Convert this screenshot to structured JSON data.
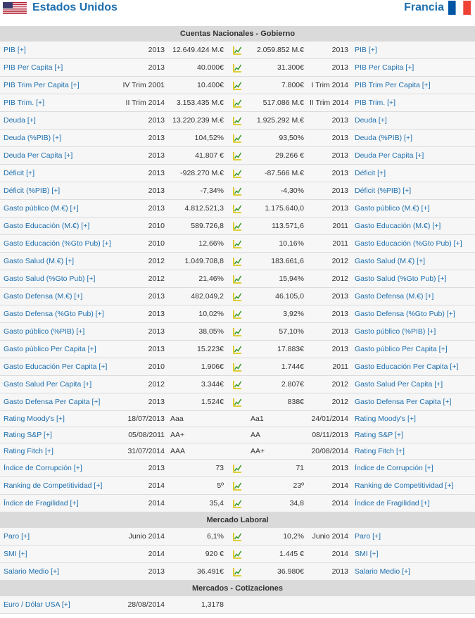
{
  "header": {
    "left_country": "Estados Unidos",
    "right_country": "Francia"
  },
  "colors": {
    "link": "#1e6fae",
    "section_bg": "#dadada",
    "icon_green": "#3a9a2a",
    "icon_yellow": "#d8c000"
  },
  "sections": [
    {
      "title": "Cuentas Nacionales - Gobierno",
      "rows": [
        {
          "label": "PIB [+]",
          "left_year": "2013",
          "left_value": "12.649.424 M.€",
          "right_value": "2.059.852 M.€",
          "right_year": "2013",
          "right_label": "PIB [+]",
          "icon": true
        },
        {
          "label": "PIB Per Capita [+]",
          "left_year": "2013",
          "left_value": "40.000€",
          "right_value": "31.300€",
          "right_year": "2013",
          "right_label": "PIB Per Capita [+]",
          "icon": true
        },
        {
          "label": "PIB Trim Per Capita [+]",
          "left_year": "IV Trim 2001",
          "left_value": "10.400€",
          "right_value": "7.800€",
          "right_year": "I Trim 2014",
          "right_label": "PIB Trim Per Capita [+]",
          "icon": true
        },
        {
          "label": "PIB Trim. [+]",
          "left_year": "II Trim 2014",
          "left_value": "3.153.435 M.€",
          "right_value": "517.086 M.€",
          "right_year": "II Trim 2014",
          "right_label": "PIB Trim. [+]",
          "icon": true
        },
        {
          "label": "Deuda [+]",
          "left_year": "2013",
          "left_value": "13.220.239 M.€",
          "right_value": "1.925.292 M.€",
          "right_year": "2013",
          "right_label": "Deuda [+]",
          "icon": true
        },
        {
          "label": "Deuda (%PIB) [+]",
          "left_year": "2013",
          "left_value": "104,52%",
          "right_value": "93,50%",
          "right_year": "2013",
          "right_label": "Deuda (%PIB) [+]",
          "icon": true
        },
        {
          "label": "Deuda Per Capita [+]",
          "left_year": "2013",
          "left_value": "41.807 €",
          "right_value": "29.266 €",
          "right_year": "2013",
          "right_label": "Deuda Per Capita [+]",
          "icon": true
        },
        {
          "label": "Déficit [+]",
          "left_year": "2013",
          "left_value": "-928.270 M.€",
          "right_value": "-87.566 M.€",
          "right_year": "2013",
          "right_label": "Déficit [+]",
          "icon": true
        },
        {
          "label": "Déficit (%PIB) [+]",
          "left_year": "2013",
          "left_value": "-7,34%",
          "right_value": "-4,30%",
          "right_year": "2013",
          "right_label": "Déficit (%PIB) [+]",
          "icon": true
        },
        {
          "label": "Gasto público (M.€) [+]",
          "left_year": "2013",
          "left_value": "4.812.521,3",
          "right_value": "1.175.640,0",
          "right_year": "2013",
          "right_label": "Gasto público (M.€) [+]",
          "icon": true
        },
        {
          "label": "Gasto Educación (M.€) [+]",
          "left_year": "2010",
          "left_value": "589.726,8",
          "right_value": "113.571,6",
          "right_year": "2011",
          "right_label": "Gasto Educación (M.€) [+]",
          "icon": true
        },
        {
          "label": "Gasto Educación (%Gto Pub) [+]",
          "left_year": "2010",
          "left_value": "12,66%",
          "right_value": "10,16%",
          "right_year": "2011",
          "right_label": "Gasto Educación (%Gto Pub) [+]",
          "icon": true
        },
        {
          "label": "Gasto Salud (M.€) [+]",
          "left_year": "2012",
          "left_value": "1.049.708,8",
          "right_value": "183.661,6",
          "right_year": "2012",
          "right_label": "Gasto Salud (M.€) [+]",
          "icon": true
        },
        {
          "label": "Gasto Salud (%Gto Pub) [+]",
          "left_year": "2012",
          "left_value": "21,46%",
          "right_value": "15,94%",
          "right_year": "2012",
          "right_label": "Gasto Salud (%Gto Pub) [+]",
          "icon": true
        },
        {
          "label": "Gasto Defensa (M.€) [+]",
          "left_year": "2013",
          "left_value": "482.049,2",
          "right_value": "46.105,0",
          "right_year": "2013",
          "right_label": "Gasto Defensa (M.€) [+]",
          "icon": true
        },
        {
          "label": "Gasto Defensa (%Gto Pub) [+]",
          "left_year": "2013",
          "left_value": "10,02%",
          "right_value": "3,92%",
          "right_year": "2013",
          "right_label": "Gasto Defensa (%Gto Pub) [+]",
          "icon": true
        },
        {
          "label": "Gasto público (%PIB) [+]",
          "left_year": "2013",
          "left_value": "38,05%",
          "right_value": "57,10%",
          "right_year": "2013",
          "right_label": "Gasto público (%PIB) [+]",
          "icon": true
        },
        {
          "label": "Gasto público Per Capita [+]",
          "left_year": "2013",
          "left_value": "15.223€",
          "right_value": "17.883€",
          "right_year": "2013",
          "right_label": "Gasto público Per Capita [+]",
          "icon": true
        },
        {
          "label": "Gasto Educación Per Capita [+]",
          "left_year": "2010",
          "left_value": "1.906€",
          "right_value": "1.744€",
          "right_year": "2011",
          "right_label": "Gasto Educación Per Capita [+]",
          "icon": true
        },
        {
          "label": "Gasto Salud Per Capita [+]",
          "left_year": "2012",
          "left_value": "3.344€",
          "right_value": "2.807€",
          "right_year": "2012",
          "right_label": "Gasto Salud Per Capita [+]",
          "icon": true
        },
        {
          "label": "Gasto Defensa Per Capita [+]",
          "left_year": "2013",
          "left_value": "1.524€",
          "right_value": "838€",
          "right_year": "2012",
          "right_label": "Gasto Defensa Per Capita [+]",
          "icon": true
        },
        {
          "label": "Rating Moody's [+]",
          "left_year": "18/07/2013",
          "left_value": "Aaa",
          "right_value": "Aa1",
          "right_year": "24/01/2014",
          "right_label": "Rating Moody's [+]",
          "icon": false,
          "rating": true
        },
        {
          "label": "Rating S&P [+]",
          "left_year": "05/08/2011",
          "left_value": "AA+",
          "right_value": "AA",
          "right_year": "08/11/2013",
          "right_label": "Rating S&P [+]",
          "icon": false,
          "rating": true
        },
        {
          "label": "Rating Fitch [+]",
          "left_year": "31/07/2014",
          "left_value": "AAA",
          "right_value": "AA+",
          "right_year": "20/08/2014",
          "right_label": "Rating Fitch [+]",
          "icon": false,
          "rating": true
        },
        {
          "label": "Índice de Corrupción [+]",
          "left_year": "2013",
          "left_value": "73",
          "right_value": "71",
          "right_year": "2013",
          "right_label": "Índice de Corrupción [+]",
          "icon": true
        },
        {
          "label": "Ranking de Competitividad [+]",
          "left_year": "2014",
          "left_value": "5º",
          "right_value": "23º",
          "right_year": "2014",
          "right_label": "Ranking de Competitividad [+]",
          "icon": true
        },
        {
          "label": "Índice de Fragilidad [+]",
          "left_year": "2014",
          "left_value": "35,4",
          "right_value": "34,8",
          "right_year": "2014",
          "right_label": "Índice de Fragilidad [+]",
          "icon": true
        }
      ]
    },
    {
      "title": "Mercado Laboral",
      "rows": [
        {
          "label": "Paro [+]",
          "left_year": "Junio 2014",
          "left_value": "6,1%",
          "right_value": "10,2%",
          "right_year": "Junio 2014",
          "right_label": "Paro [+]",
          "icon": true
        },
        {
          "label": "SMI [+]",
          "left_year": "2014",
          "left_value": "920 €",
          "right_value": "1.445 €",
          "right_year": "2014",
          "right_label": "SMI [+]",
          "icon": true
        },
        {
          "label": "Salario Medio [+]",
          "left_year": "2013",
          "left_value": "36.491€",
          "right_value": "36.980€",
          "right_year": "2013",
          "right_label": "Salario Medio [+]",
          "icon": true
        }
      ]
    },
    {
      "title": "Mercados - Cotizaciones",
      "rows": [
        {
          "label": "Euro / Dólar USA [+]",
          "left_year": "28/08/2014",
          "left_value": "1,3178",
          "right_value": "",
          "right_year": "",
          "right_label": "",
          "icon": false
        }
      ]
    }
  ]
}
